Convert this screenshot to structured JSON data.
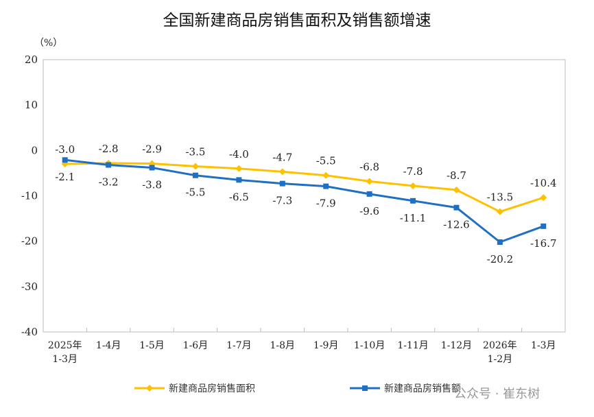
{
  "chart_data": {
    "type": "line",
    "title": "全国新建商品房销售面积及销售额增速",
    "ylabel": "（%）",
    "ylim": [
      -40,
      20
    ],
    "yticks": [
      20,
      10,
      0,
      -10,
      -20,
      -30,
      -40
    ],
    "grid": false,
    "legend_position": "bottom",
    "categories": [
      "2025年\n1-3月",
      "1-4月",
      "1-5月",
      "1-6月",
      "1-7月",
      "1-8月",
      "1-9月",
      "1-10月",
      "1-11月",
      "1-12月",
      "2026年\n1-2月",
      "1-3月"
    ],
    "series": [
      {
        "name": "新建商品房销售面积",
        "color": "#FFC000",
        "marker": "diamond",
        "values": [
          -3.0,
          -2.8,
          -2.9,
          -3.5,
          -4.0,
          -4.7,
          -5.5,
          -6.8,
          -7.8,
          -8.7,
          -13.5,
          -10.4
        ],
        "label_position": "above"
      },
      {
        "name": "新建商品房销售额",
        "color": "#1F6FC5",
        "marker": "square",
        "values": [
          -2.1,
          -3.2,
          -3.8,
          -5.5,
          -6.5,
          -7.3,
          -7.9,
          -9.6,
          -11.1,
          -12.6,
          -20.2,
          -16.7
        ],
        "label_position": "below"
      }
    ]
  },
  "watermark": "公众号 · 崔东树"
}
